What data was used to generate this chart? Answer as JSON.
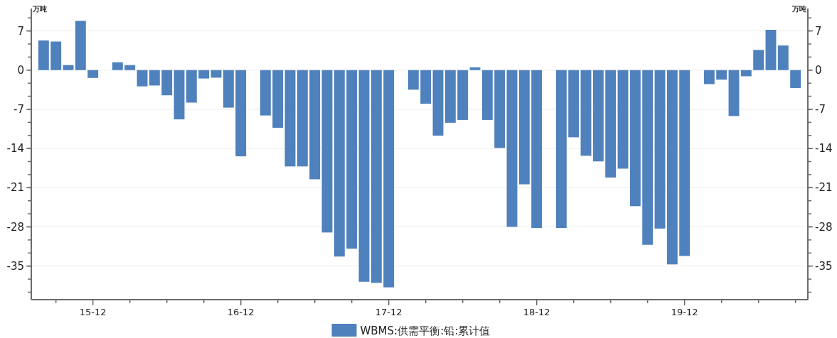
{
  "chart_data": {
    "type": "bar",
    "categories": [
      null,
      null,
      null,
      null,
      "15-12",
      null,
      null,
      null,
      null,
      null,
      null,
      null,
      null,
      null,
      null,
      null,
      "16-12",
      null,
      null,
      null,
      null,
      null,
      null,
      null,
      null,
      null,
      null,
      null,
      "17-12",
      null,
      null,
      null,
      null,
      null,
      null,
      null,
      null,
      null,
      null,
      null,
      "18-12",
      null,
      null,
      null,
      null,
      null,
      null,
      null,
      null,
      null,
      null,
      null,
      "19-12",
      null,
      null,
      null,
      null,
      null,
      null,
      null,
      null,
      null
    ],
    "series": [
      {
        "name": "WBMS:供需平衡:铅:累计值",
        "color": "#4f81bd",
        "values": [
          5.3,
          5.1,
          0.9,
          8.8,
          -1.4,
          null,
          1.4,
          0.9,
          -2.9,
          -2.75,
          -4.5,
          -8.8,
          -5.8,
          -1.5,
          -1.35,
          -6.7,
          -15.4,
          null,
          -8.1,
          -10.3,
          -17.2,
          -17.2,
          -19.5,
          -29.0,
          -33.3,
          -31.9,
          -37.8,
          -38.0,
          -38.8,
          null,
          -3.5,
          -6.0,
          -11.7,
          -9.4,
          -8.9,
          0.5,
          -8.9,
          -13.9,
          -28.0,
          -20.4,
          -28.2,
          null,
          -28.2,
          -12.0,
          -15.3,
          -16.3,
          -19.2,
          -17.6,
          -24.3,
          -31.2,
          -28.3,
          -34.7,
          -33.2,
          null,
          -2.5,
          -1.7,
          -8.2,
          -1.1,
          3.6,
          7.2,
          4.4,
          -3.2
        ]
      }
    ],
    "ylabel": "万吨",
    "y2label": "万吨",
    "ylim": [
      -41,
      11
    ],
    "yticks": [
      -35,
      -28,
      -21,
      -14,
      -7,
      0,
      7
    ],
    "y2lim": [
      -41,
      11
    ],
    "y2ticks": [
      -35,
      -28,
      -21,
      -14,
      -7,
      0,
      7
    ],
    "grid": "y",
    "legend": "bottom"
  }
}
